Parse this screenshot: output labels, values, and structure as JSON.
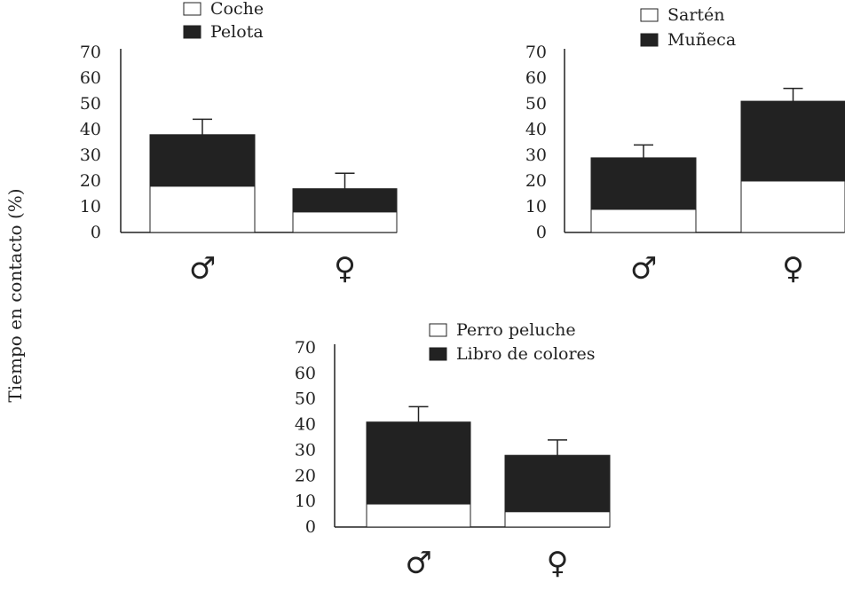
{
  "y_axis_label": "Tiempo en contacto (%)",
  "chart_data": [
    {
      "type": "bar",
      "stacked": true,
      "categories": [
        "♂",
        "♀"
      ],
      "series": [
        {
          "name": "Coche",
          "color": "#ffffff",
          "values": [
            18,
            8
          ]
        },
        {
          "name": "Pelota",
          "color": "#222222",
          "values": [
            20,
            9
          ]
        }
      ],
      "error_bar_tops": [
        44,
        23
      ],
      "yticks": [
        0,
        10,
        20,
        30,
        40,
        50,
        60,
        70
      ],
      "ylim": [
        0,
        70
      ]
    },
    {
      "type": "bar",
      "stacked": true,
      "categories": [
        "♂",
        "♀"
      ],
      "series": [
        {
          "name": "Sartén",
          "color": "#ffffff",
          "values": [
            9,
            20
          ]
        },
        {
          "name": "Muñeca",
          "color": "#222222",
          "values": [
            20,
            31
          ]
        }
      ],
      "error_bar_tops": [
        34,
        56
      ],
      "yticks": [
        0,
        10,
        20,
        30,
        40,
        50,
        60,
        70
      ],
      "ylim": [
        0,
        70
      ]
    },
    {
      "type": "bar",
      "stacked": true,
      "categories": [
        "♂",
        "♀"
      ],
      "series": [
        {
          "name": "Perro peluche",
          "color": "#ffffff",
          "values": [
            9,
            6
          ]
        },
        {
          "name": "Libro de colores",
          "color": "#222222",
          "values": [
            32,
            22
          ]
        }
      ],
      "error_bar_tops": [
        47,
        34
      ],
      "yticks": [
        0,
        10,
        20,
        30,
        40,
        50,
        60,
        70
      ],
      "ylim": [
        0,
        70
      ]
    }
  ]
}
